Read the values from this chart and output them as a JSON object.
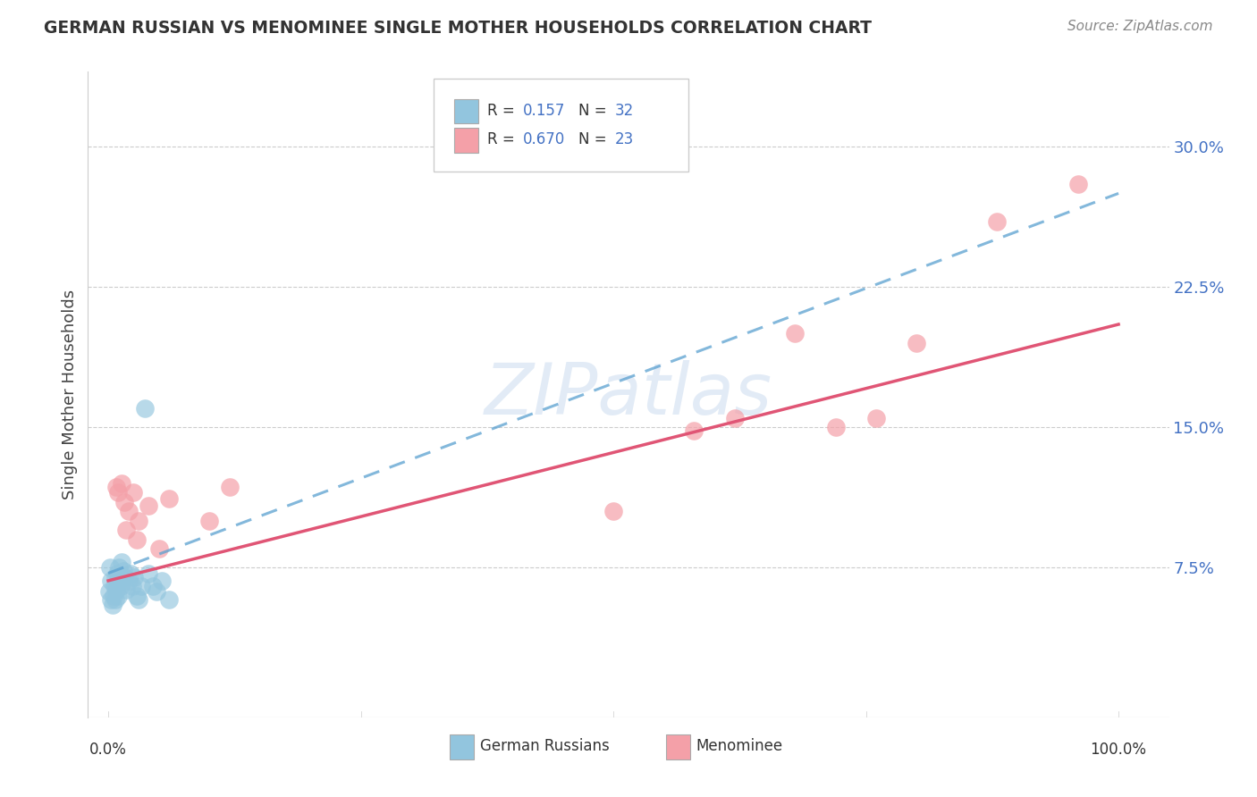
{
  "title": "GERMAN RUSSIAN VS MENOMINEE SINGLE MOTHER HOUSEHOLDS CORRELATION CHART",
  "source": "Source: ZipAtlas.com",
  "ylabel": "Single Mother Households",
  "xlim": [
    -0.02,
    1.05
  ],
  "ylim": [
    -0.005,
    0.34
  ],
  "blue_color": "#92c5de",
  "pink_color": "#f4a0a8",
  "blue_line_color": "#5aa0d0",
  "pink_line_color": "#e05575",
  "grid_color": "#cccccc",
  "bg_color": "#ffffff",
  "german_russian_x": [
    0.001,
    0.002,
    0.003,
    0.003,
    0.004,
    0.005,
    0.006,
    0.007,
    0.007,
    0.008,
    0.009,
    0.01,
    0.01,
    0.011,
    0.012,
    0.013,
    0.015,
    0.016,
    0.018,
    0.02,
    0.022,
    0.024,
    0.026,
    0.028,
    0.03,
    0.033,
    0.036,
    0.04,
    0.044,
    0.048,
    0.053,
    0.06
  ],
  "german_russian_y": [
    0.062,
    0.075,
    0.058,
    0.068,
    0.055,
    0.06,
    0.065,
    0.07,
    0.058,
    0.063,
    0.072,
    0.068,
    0.06,
    0.075,
    0.065,
    0.078,
    0.073,
    0.07,
    0.063,
    0.068,
    0.072,
    0.065,
    0.07,
    0.06,
    0.058,
    0.065,
    0.16,
    0.072,
    0.065,
    0.062,
    0.068,
    0.058
  ],
  "menominee_x": [
    0.008,
    0.01,
    0.013,
    0.016,
    0.018,
    0.02,
    0.025,
    0.028,
    0.03,
    0.04,
    0.05,
    0.06,
    0.1,
    0.12,
    0.5,
    0.58,
    0.62,
    0.68,
    0.72,
    0.76,
    0.8,
    0.88,
    0.96
  ],
  "menominee_y": [
    0.118,
    0.115,
    0.12,
    0.11,
    0.095,
    0.105,
    0.115,
    0.09,
    0.1,
    0.108,
    0.085,
    0.112,
    0.1,
    0.118,
    0.105,
    0.148,
    0.155,
    0.2,
    0.15,
    0.155,
    0.195,
    0.26,
    0.28
  ],
  "blue_line_x0": 0.0,
  "blue_line_y0": 0.072,
  "blue_line_x1": 1.0,
  "blue_line_y1": 0.275,
  "pink_line_x0": 0.0,
  "pink_line_y0": 0.068,
  "pink_line_x1": 1.0,
  "pink_line_y1": 0.205,
  "ytick_vals": [
    0.075,
    0.15,
    0.225,
    0.3
  ],
  "ytick_labels": [
    "7.5%",
    "15.0%",
    "22.5%",
    "30.0%"
  ]
}
